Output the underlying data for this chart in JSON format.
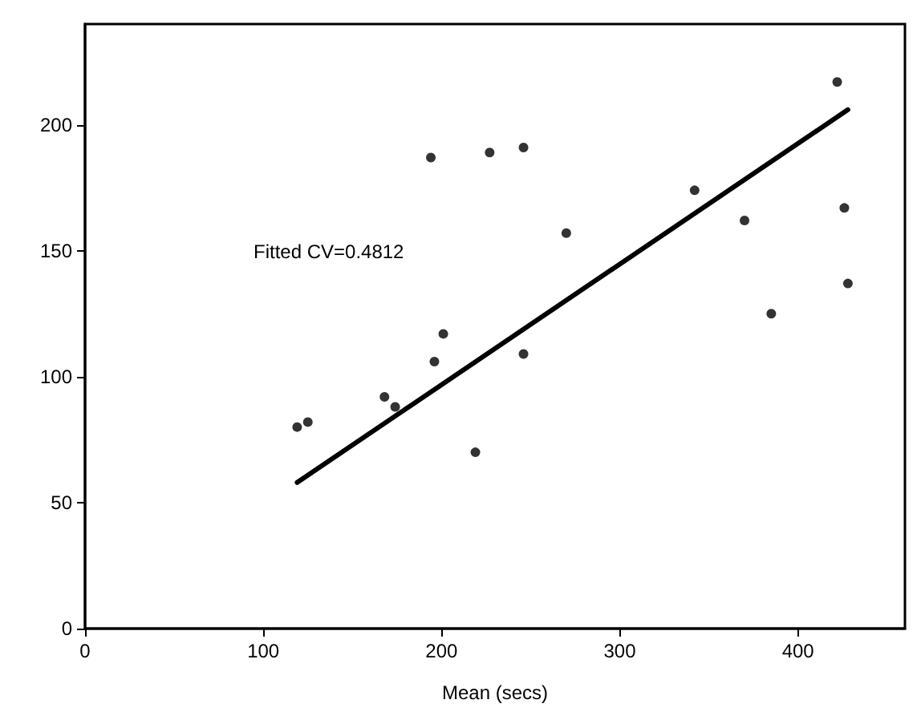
{
  "chart_data": {
    "type": "scatter",
    "xlabel": "Mean (secs)",
    "annotations": [
      "Fitted CV=0.4812"
    ],
    "xlim": [
      0,
      460
    ],
    "xticks": [
      0,
      100,
      200,
      300,
      400
    ],
    "ylim": [
      0,
      240
    ],
    "yticks": [
      0,
      50,
      100,
      150,
      200
    ],
    "grid": false,
    "marker": "circle",
    "series": [
      {
        "color": "#000000",
        "x": [
          119,
          125,
          168,
          174,
          194,
          196,
          201,
          219,
          227,
          246,
          246,
          270,
          342,
          370,
          385,
          422,
          426,
          428
        ],
        "values": [
          80,
          82,
          92,
          88,
          187,
          106,
          117,
          70,
          189,
          191,
          109,
          157,
          174,
          162,
          125,
          217,
          167,
          137
        ]
      },
      {
        "type": "line",
        "color": "#000000",
        "line_style": "solid",
        "marker": "none",
        "x": [
          119,
          428
        ],
        "values": [
          58,
          206
        ]
      }
    ]
  }
}
